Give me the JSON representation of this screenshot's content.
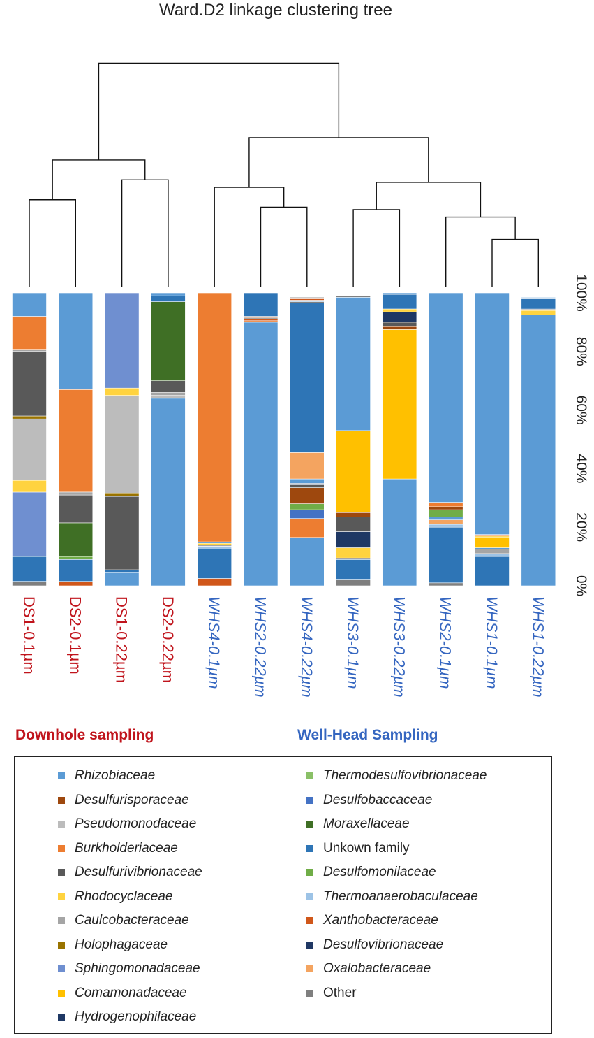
{
  "chart_data": {
    "type": "bar",
    "stacked": true,
    "title": "Ward.D2 linkage clustering tree",
    "ylabel": "",
    "ylim": [
      0,
      100
    ],
    "ytick_labels": [
      "0%",
      "20%",
      "40%",
      "60%",
      "80%",
      "100%"
    ],
    "categories": [
      "DS1-0.1µm",
      "DS2-0.1µm",
      "DS1-0.22µm",
      "DS2-0.22µm",
      "WHS4-0.1µm",
      "WHS2-0.22µm",
      "WHS4-0.22µm",
      "WHS3-0.1µm",
      "WHS3-0.22µm",
      "WHS2-0.1µm",
      "WHS1-0.1µm",
      "WHS1-0.22µm"
    ],
    "category_groups": [
      "Downhole",
      "Downhole",
      "Downhole",
      "Downhole",
      "Well-Head",
      "Well-Head",
      "Well-Head",
      "Well-Head",
      "Well-Head",
      "Well-Head",
      "Well-Head",
      "Well-Head"
    ],
    "group_labels": {
      "downhole": "Downhole sampling",
      "wellhead": "Well-Head Sampling"
    },
    "group_colors": {
      "downhole": "#c0141c",
      "wellhead": "#3566c0"
    },
    "series": [
      {
        "name": "Other",
        "italic": false,
        "color": "#7f7f7f",
        "values": [
          1.5,
          0,
          0,
          0,
          0,
          0,
          0,
          2,
          0,
          1,
          0,
          0
        ]
      },
      {
        "name": "Xanthobacteraceae",
        "italic": true,
        "color": "#d0571a",
        "values": [
          0,
          1.5,
          0,
          0,
          2.5,
          0,
          0,
          0,
          0,
          0,
          0,
          0
        ]
      },
      {
        "name": "Rhizobiaceae",
        "italic": true,
        "color": "#5b9bd5",
        "values": [
          0,
          0,
          4.5,
          64,
          0,
          90,
          16.5,
          0,
          36.5,
          0,
          0,
          92.5
        ]
      },
      {
        "name": "Pseudomonodaceae",
        "italic": true,
        "color": "#bcbcbc",
        "values": [
          0,
          0,
          0,
          1,
          0,
          0,
          0,
          0,
          0,
          0,
          0,
          0
        ]
      },
      {
        "name": "Unkown family",
        "italic": false,
        "color": "#2e75b6",
        "values": [
          8.5,
          7.5,
          1,
          0,
          10,
          0,
          0,
          7,
          0,
          19,
          10,
          0
        ]
      },
      {
        "name": "Burkholderiaceae",
        "italic": true,
        "color": "#ed7d31",
        "values": [
          0,
          0,
          0,
          0,
          0,
          0,
          6.5,
          0,
          0,
          0,
          0,
          0
        ]
      },
      {
        "name": "Moraxellaceae",
        "italic": true,
        "color": "#3f6f25",
        "values": [
          0,
          11.5,
          0,
          0,
          0,
          0,
          0,
          0,
          0,
          0,
          0,
          0
        ]
      },
      {
        "name": "Thermoanaerobaculaceae",
        "italic": true,
        "color": "#9dc3e6",
        "values": [
          0,
          0,
          0,
          0,
          0,
          0,
          0,
          0,
          0,
          0,
          1.5,
          0
        ]
      },
      {
        "name": "Desulfurivibrionaceae",
        "italic": true,
        "color": "#595959",
        "values": [
          0,
          0,
          25,
          0,
          0,
          0,
          0,
          0,
          0,
          0,
          0,
          0
        ]
      },
      {
        "name": "Rhodocyclaceae",
        "italic": true,
        "color": "#ffd33f",
        "values": [
          0,
          0,
          0,
          0,
          0,
          0,
          0,
          3.5,
          0,
          0,
          0,
          0
        ]
      },
      {
        "name": "Desulfobaccaceae",
        "italic": true,
        "color": "#4472c4",
        "values": [
          22,
          0,
          0,
          0,
          0,
          0,
          3,
          0,
          0,
          0,
          0,
          0
        ]
      },
      {
        "name": "Oxalobacteraceae",
        "italic": true,
        "color": "#f4a460",
        "values": [
          0,
          0,
          0,
          0,
          0,
          0,
          0,
          0,
          0,
          1.5,
          0,
          0
        ]
      },
      {
        "name": "Desulfovibrionaceae",
        "italic": true,
        "color": "#203864",
        "values": [
          0,
          0,
          0,
          0,
          0,
          0,
          0,
          5.5,
          0,
          0,
          0,
          0
        ]
      },
      {
        "name": "Comamonadaceae",
        "italic": true,
        "color": "#ffc000",
        "values": [
          0,
          0,
          0,
          0,
          0,
          0,
          0,
          0,
          0,
          0,
          3.5,
          0
        ]
      },
      {
        "name": "Desulfomonilaceae",
        "italic": true,
        "color": "#70ad47",
        "values": [
          0,
          0,
          0,
          0,
          0,
          0,
          2,
          0,
          0,
          2.5,
          0,
          0
        ]
      },
      {
        "name": "Caulcobacteraceae",
        "italic": true,
        "color": "#a5a5a5",
        "values": [
          0,
          0,
          0,
          0,
          0,
          0,
          0,
          0,
          0,
          0,
          1.5,
          0
        ]
      },
      {
        "name": "Desulfurisporaceae",
        "italic": true,
        "color": "#9e480e",
        "values": [
          0,
          0,
          0,
          0,
          0,
          0,
          5.5,
          0,
          0,
          1,
          0,
          0
        ]
      },
      {
        "name": "Holophagaceae",
        "italic": true,
        "color": "#997300",
        "values": [
          0,
          0,
          1,
          0,
          0,
          0,
          0,
          0,
          0,
          0,
          0,
          0
        ]
      },
      {
        "name": "Sphingomonadaceae",
        "italic": true,
        "color": "#6f8fd0",
        "values": [
          0,
          0,
          0,
          0,
          0,
          0,
          0,
          0,
          0,
          0,
          0,
          0
        ]
      },
      {
        "name": "Hydrogenophilaceae",
        "italic": true,
        "color": "#1f3864",
        "values": [
          0,
          0,
          0,
          0,
          0,
          0,
          0,
          0,
          0,
          0,
          0,
          0
        ]
      },
      {
        "name": "Thermodesulfovibrionaceae",
        "italic": true,
        "color": "#8ac067",
        "values": [
          0,
          0,
          0,
          0,
          0,
          0,
          0,
          0,
          0,
          0,
          0,
          0
        ]
      }
    ],
    "stacks": [
      [
        [
          "Other",
          1.5
        ],
        [
          "Unkown family",
          8.5
        ],
        [
          "Sphingomonadaceae",
          22
        ],
        [
          "Rhodocyclaceae",
          4
        ],
        [
          "Pseudomonodaceae",
          21
        ],
        [
          "Holophagaceae",
          1
        ],
        [
          "Desulfurivibrionaceae",
          22
        ],
        [
          "Caulcobacteraceae",
          0.5
        ],
        [
          "Burkholderiaceae",
          11.5
        ],
        [
          "Rhizobiaceae",
          8
        ]
      ],
      [
        [
          "Xanthobacteraceae",
          1.5
        ],
        [
          "Unkown family",
          7.5
        ],
        [
          "Desulfomonilaceae",
          1
        ],
        [
          "Moraxellaceae",
          11.5
        ],
        [
          "Desulfurivibrionaceae",
          9.5
        ],
        [
          "Caulcobacteraceae",
          1
        ],
        [
          "Burkholderiaceae",
          35
        ],
        [
          "Rhizobiaceae",
          33
        ]
      ],
      [
        [
          "Rhizobiaceae",
          4.5
        ],
        [
          "Unkown family",
          1
        ],
        [
          "Desulfurivibrionaceae",
          25
        ],
        [
          "Holophagaceae",
          1
        ],
        [
          "Pseudomonodaceae",
          33.5
        ],
        [
          "Rhodocyclaceae",
          2.5
        ],
        [
          "Sphingomonadaceae",
          32.5
        ]
      ],
      [
        [
          "Rhizobiaceae",
          64
        ],
        [
          "Pseudomonodaceae",
          1
        ],
        [
          "Caulcobacteraceae",
          1
        ],
        [
          "Desulfurivibrionaceae",
          4
        ],
        [
          "Moraxellaceae",
          27
        ],
        [
          "Unkown family",
          2
        ],
        [
          "Rhizobiaceae",
          1
        ]
      ],
      [
        [
          "Xanthobacteraceae",
          2.5
        ],
        [
          "Unkown family",
          10
        ],
        [
          "Thermoanaerobaculaceae",
          1
        ],
        [
          "Caulcobacteraceae",
          0.5
        ],
        [
          "Rhodocyclaceae",
          0.5
        ],
        [
          "Rhizobiaceae",
          0.5
        ],
        [
          "Burkholderiaceae",
          85
        ]
      ],
      [
        [
          "Rhizobiaceae",
          90
        ],
        [
          "Burkholderiaceae",
          0.5
        ],
        [
          "Xanthobacteraceae",
          0.5
        ],
        [
          "Caulcobacteraceae",
          0.5
        ],
        [
          "Desulfurisporaceae",
          0.5
        ],
        [
          "Unkown family",
          8
        ]
      ],
      [
        [
          "Rhizobiaceae",
          16.5
        ],
        [
          "Burkholderiaceae",
          6.5
        ],
        [
          "Desulfobaccaceae",
          3
        ],
        [
          "Desulfomonilaceae",
          2
        ],
        [
          "Desulfurisporaceae",
          5.5
        ],
        [
          "Desulfurivibrionaceae",
          1
        ],
        [
          "Desulfovibrionaceae",
          0.5
        ],
        [
          "Rhizobiaceae",
          1.5
        ],
        [
          "Oxalobacteraceae",
          9
        ],
        [
          "Unkown family",
          51
        ],
        [
          "Other",
          0.5
        ],
        [
          "Rhizobiaceae",
          0.5
        ],
        [
          "Xanthobacteraceae",
          0.5
        ],
        [
          "Other",
          0.5
        ]
      ],
      [
        [
          "Other",
          2
        ],
        [
          "Unkown family",
          7
        ],
        [
          "Caulcobacteraceae",
          0.5
        ],
        [
          "Rhodocyclaceae",
          3.5
        ],
        [
          "Hydrogenophilaceae",
          5.5
        ],
        [
          "Desulfurivibrionaceae",
          5
        ],
        [
          "Desulfurisporaceae",
          1.5
        ],
        [
          "Comamonadaceae",
          28
        ],
        [
          "Rhizobiaceae",
          45.5
        ],
        [
          "Other",
          0.5
        ]
      ],
      [
        [
          "Rhizobiaceae",
          36.5
        ],
        [
          "Comamonadaceae",
          51
        ],
        [
          "Desulfurisporaceae",
          1
        ],
        [
          "Desulfurivibrionaceae",
          1.5
        ],
        [
          "Hydrogenophilaceae",
          3.5
        ],
        [
          "Rhodocyclaceae",
          1
        ],
        [
          "Unkown family",
          5
        ],
        [
          "Rhizobiaceae",
          0.5
        ]
      ],
      [
        [
          "Other",
          1
        ],
        [
          "Unkown family",
          19
        ],
        [
          "Thermoanaerobaculaceae",
          1
        ],
        [
          "Oxalobacteraceae",
          1.5
        ],
        [
          "Rhizobiaceae",
          1
        ],
        [
          "Desulfomonilaceae",
          2.5
        ],
        [
          "Desulfurisporaceae",
          1
        ],
        [
          "Burkholderiaceae",
          1.5
        ],
        [
          "Rhizobiaceae",
          71.5
        ]
      ],
      [
        [
          "Unkown family",
          10
        ],
        [
          "Thermoanaerobaculaceae",
          1
        ],
        [
          "Caulcobacteraceae",
          1.5
        ],
        [
          "Rhizobiaceae",
          0.5
        ],
        [
          "Comamonadaceae",
          3.5
        ],
        [
          "Rhodocyclaceae",
          0.5
        ],
        [
          "Burkholderiaceae",
          0.5
        ],
        [
          "Rhizobiaceae",
          82.5
        ]
      ],
      [
        [
          "Rhizobiaceae",
          92.5
        ],
        [
          "Rhodocyclaceae",
          1.5
        ],
        [
          "Caulcobacteraceae",
          0.5
        ],
        [
          "Unkown family",
          3.5
        ],
        [
          "Thermoanaerobaculaceae",
          0.5
        ]
      ]
    ],
    "legend_left": [
      "Rhizobiaceae",
      "Desulfurisporaceae",
      "Pseudomonodaceae",
      "Burkholderiaceae",
      "Desulfurivibrionaceae",
      "Rhodocyclaceae",
      "Caulcobacteraceae",
      "Holophagaceae",
      "Sphingomonadaceae",
      "Comamonadaceae",
      "Hydrogenophilaceae"
    ],
    "legend_right": [
      "Thermodesulfovibrionaceae",
      "Desulfobaccaceae",
      "Moraxellaceae",
      "Unkown family",
      "Desulfomonilaceae",
      "Thermoanaerobaculaceae",
      "Xanthobacteraceae",
      "Desulfovibrionaceae",
      "Oxalobacteraceae",
      "Other"
    ],
    "dendrogram": {
      "method": "Ward.D2",
      "merges": [
        [
          "WHS1-0.1µm",
          "WHS1-0.22µm"
        ],
        [
          "WHS2-0.1µm",
          "WHS1 cluster"
        ],
        [
          "WHS3-0.1µm",
          "WHS3-0.22µm"
        ],
        [
          "WHS3 cluster",
          "WHS2/WHS1 cluster"
        ],
        [
          "WHS2-0.22µm",
          "WHS4-0.22µm"
        ],
        [
          "WHS4-0.1µm",
          "WHS2/WHS4 cluster"
        ],
        [
          "DS1-0.1µm",
          "DS2-0.1µm"
        ],
        [
          "DS1-0.22µm",
          "DS2-0.22µm"
        ],
        [
          "DS 0.1 cluster",
          "DS 0.22 cluster"
        ],
        [
          "WHS4 group",
          "WHS3/WHS2/WHS1 group"
        ],
        [
          "Downhole",
          "Well-Head"
        ]
      ],
      "heights": [
        0.95,
        1.4,
        1.55,
        2.1,
        1.6,
        2.0,
        1.75,
        2.15,
        2.55,
        3.0,
        4.5
      ]
    }
  }
}
